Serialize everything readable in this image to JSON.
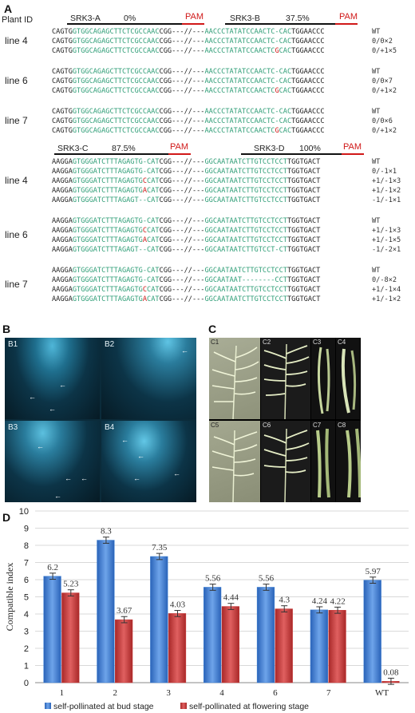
{
  "panel_a": {
    "letter": "A",
    "plant_id": "Plant ID",
    "top_headers": {
      "srk3a": "SRK3-A",
      "srk3a_pct": "0%",
      "srk3b": "SRK3-B",
      "srk3b_pct": "37.5%",
      "pam1": "PAM",
      "pam2": "PAM"
    },
    "bottom_headers": {
      "srk3c": "SRK3-C",
      "srk3c_pct": "87.5%",
      "srk3d": "SRK3-D",
      "srk3d_pct": "100%",
      "pam1": "PAM",
      "pam2": "PAM"
    },
    "top_groups": [
      {
        "label": "line 4",
        "rows": [
          {
            "a": "CAGTG",
            "b": "GTGGCAGAGCTTCTCGCCAAC",
            "c": "",
            "d": "CGG",
            "e": "---//---",
            "f": "AACCCTATATCCAACTC-CAC",
            "h": "",
            "i": "TGGAACCC",
            "geno": "WT"
          },
          {
            "a": "CAGTG",
            "b": "GTGGCAGAGCTTCTCGCCAAC",
            "c": "",
            "d": "CGG",
            "e": "---//---",
            "f": "AACCCTATATCCAACTC-CAC",
            "h": "",
            "i": "TGGAACCC",
            "geno": "0/0×2"
          },
          {
            "a": "CAGTG",
            "b": "GTGGCAGAGCTTCTCGCCAAC",
            "c": "",
            "d": "CGG",
            "e": "---//---",
            "f": "AACCCTATATCCAACTC",
            "g": "G",
            "h": "CAC",
            "i": "TGGAACCC",
            "geno": "0/+1×5"
          }
        ]
      },
      {
        "label": "line 6",
        "rows": [
          {
            "a": "CAGTG",
            "b": "GTGGCAGAGCTTCTCGCCAAC",
            "c": "",
            "d": "CGG",
            "e": "---//---",
            "f": "AACCCTATATCCAACTC-CAC",
            "h": "",
            "i": "TGGAACCC",
            "geno": "WT"
          },
          {
            "a": "CAGTG",
            "b": "GTGGCAGAGCTTCTCGCCAAC",
            "c": "",
            "d": "CGG",
            "e": "---//---",
            "f": "AACCCTATATCCAACTC-CAC",
            "h": "",
            "i": "TGGAACCC",
            "geno": "0/0×7"
          },
          {
            "a": "CAGTG",
            "b": "GTGGCAGAGCTTCTCGCCAAC",
            "c": "",
            "d": "CGG",
            "e": "---//---",
            "f": "AACCCTATATCCAACTC",
            "g": "G",
            "h": "CAC",
            "i": "TGGAACCC",
            "geno": "0/+1×2"
          }
        ]
      },
      {
        "label": "line 7",
        "rows": [
          {
            "a": "CAGTG",
            "b": "GTGGCAGAGCTTCTCGCCAAC",
            "c": "",
            "d": "CGG",
            "e": "---//---",
            "f": "AACCCTATATCCAACTC-CAC",
            "h": "",
            "i": "TGGAACCC",
            "geno": "WT"
          },
          {
            "a": "CAGTG",
            "b": "GTGGCAGAGCTTCTCGCCAAC",
            "c": "",
            "d": "CGG",
            "e": "---//---",
            "f": "AACCCTATATCCAACTC-CAC",
            "h": "",
            "i": "TGGAACCC",
            "geno": "0/0×6"
          },
          {
            "a": "CAGTG",
            "b": "GTGGCAGAGCTTCTCGCCAAC",
            "c": "",
            "d": "CGG",
            "e": "---//---",
            "f": "AACCCTATATCCAACTC",
            "g": "G",
            "h": "CAC",
            "i": "TGGAACCC",
            "geno": "0/+1×2"
          }
        ]
      }
    ],
    "bottom_groups": [
      {
        "label": "line 4",
        "rows": [
          {
            "a": "AAGGA",
            "b": "GTGGGATCTTTAGAGTG-CAT",
            "d": "CGG",
            "e": "---//---",
            "f": "GGCAATAATCTTGTCCTCCT",
            "i": "TGGTGACT",
            "geno": "WT"
          },
          {
            "a": "AAGGA",
            "b": "GTGGGATCTTTAGAGTG-CAT",
            "d": "CGG",
            "e": "---//---",
            "f": "GGCAATAATCTTGTCCTCCT",
            "i": "TGGTGACT",
            "geno": "0/-1×1"
          },
          {
            "a": "AAGGA",
            "b": "GTGGGATCTTTAGAGTG",
            "g": "C",
            "c": "CAT",
            "d": "CGG",
            "e": "---//---",
            "f": "GGCAATAATCTTGTCCTCCT",
            "i": "TGGTGACT",
            "geno": "+1/-1×3"
          },
          {
            "a": "AAGGA",
            "b": "GTGGGATCTTTAGAGTG",
            "g": "A",
            "c": "CAT",
            "d": "CGG",
            "e": "---//---",
            "f": "GGCAATAATCTTGTCCTCCT",
            "i": "TGGTGACT",
            "geno": "+1/-1×2"
          },
          {
            "a": "AAGGA",
            "b": "GTGGGATCTTTAGAGT--CAT",
            "d": "CGG",
            "e": "---//---",
            "f": "GGCAATAATCTTGTCCTCCT",
            "i": "TGGTGACT",
            "geno": "-1/-1×1"
          }
        ]
      },
      {
        "label": "line 6",
        "rows": [
          {
            "a": "AAGGA",
            "b": "GTGGGATCTTTAGAGTG-CAT",
            "d": "CGG",
            "e": "---//---",
            "f": "GGCAATAATCTTGTCCTCCT",
            "i": "TGGTGACT",
            "geno": "WT"
          },
          {
            "a": "AAGGA",
            "b": "GTGGGATCTTTAGAGTG",
            "g": "C",
            "c": "CAT",
            "d": "CGG",
            "e": "---//---",
            "f": "GGCAATAATCTTGTCCTCCT",
            "i": "TGGTGACT",
            "geno": "+1/-1×3"
          },
          {
            "a": "AAGGA",
            "b": "GTGGGATCTTTAGAGTG",
            "g": "A",
            "c": "CAT",
            "d": "CGG",
            "e": "---//---",
            "f": "GGCAATAATCTTGTCCTCCT",
            "i": "TGGTGACT",
            "geno": "+1/-1×5"
          },
          {
            "a": "AAGGA",
            "b": "GTGGGATCTTTAGAGT--CAT",
            "d": "CGG",
            "e": "---//---",
            "f": "GGCAATAATCTTGTCCT-CT",
            "i": "TGGTGACT",
            "geno": "-1/-2×1"
          }
        ]
      },
      {
        "label": "line 7",
        "rows": [
          {
            "a": "AAGGA",
            "b": "GTGGGATCTTTAGAGTG-CAT",
            "d": "CGG",
            "e": "---//---",
            "f": "GGCAATAATCTTGTCCTCCT",
            "i": "TGGTGACT",
            "geno": "WT"
          },
          {
            "a": "AAGGA",
            "b": "GTGGGATCTTTAGAGTG-CAT",
            "d": "CGG",
            "e": "---//---",
            "f": "GGCAATAAT--------CCT",
            "i": "TGGTGACT",
            "geno": "0/-8×2"
          },
          {
            "a": "AAGGA",
            "b": "GTGGGATCTTTAGAGTG",
            "g": "C",
            "c": "CAT",
            "d": "CGG",
            "e": "---//---",
            "f": "GGCAATAATCTTGTCCTCCT",
            "i": "TGGTGACT",
            "geno": "+1/-1×4"
          },
          {
            "a": "AAGGA",
            "b": "GTGGGATCTTTAGAGTG",
            "g": "A",
            "c": "CAT",
            "d": "CGG",
            "e": "---//---",
            "f": "GGCAATAATCTTGTCCTCCT",
            "i": "TGGTGACT",
            "geno": "+1/-1×2"
          }
        ]
      }
    ]
  },
  "panel_b": {
    "letter": "B",
    "tiles": [
      "B1",
      "B2",
      "B3",
      "B4"
    ]
  },
  "panel_c": {
    "letter": "C",
    "tiles": [
      "C1",
      "C2",
      "C3",
      "C4",
      "C5",
      "C6",
      "C7",
      "C8"
    ]
  },
  "panel_d": {
    "letter": "D",
    "chart_data": {
      "type": "bar",
      "categories": [
        "1",
        "2",
        "3",
        "4",
        "6",
        "7",
        "WT"
      ],
      "series": [
        {
          "name": "self-pollinated at bud stage",
          "values": [
            6.2,
            8.3,
            7.35,
            5.56,
            5.56,
            4.24,
            5.97
          ],
          "color": "#3b7fd4"
        },
        {
          "name": "self-pollinated at flowering stage",
          "values": [
            5.23,
            3.67,
            4.03,
            4.44,
            4.3,
            4.22,
            0.08
          ],
          "color": "#cc3b3b"
        }
      ],
      "value_labels": {
        "bud": [
          "6.2",
          "8.3",
          "7.35",
          "5.56",
          "5.56",
          "4.24",
          "5.97"
        ],
        "flower": [
          "5.23",
          "3.67",
          "4.03",
          "4.44",
          "4.3",
          "4.22",
          "0.08"
        ]
      },
      "ylabel": "Compatible index",
      "ylim": [
        0,
        10
      ],
      "yticks": [
        "0",
        "1",
        "2",
        "3",
        "4",
        "5",
        "6",
        "7",
        "8",
        "9",
        "10"
      ],
      "grid": true,
      "legend": "bottom"
    }
  }
}
